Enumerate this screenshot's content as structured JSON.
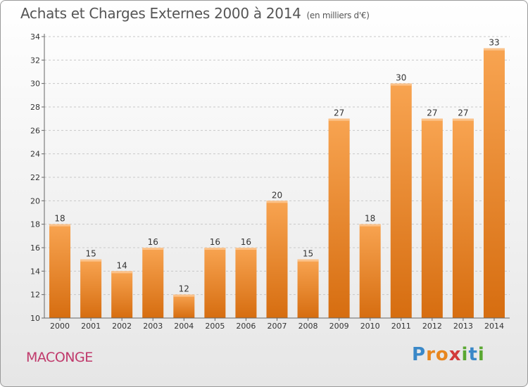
{
  "title": "Achats et Charges Externes 2000 à 2014",
  "unit": "(en milliers d'€)",
  "city": "MACONGE",
  "logo": {
    "text": "Proxiti",
    "letters": [
      {
        "ch": "P",
        "color": "#3a88c8"
      },
      {
        "ch": "r",
        "color": "#e8861e"
      },
      {
        "ch": "o",
        "color": "#e8861e"
      },
      {
        "ch": "x",
        "color": "#d23b3b"
      },
      {
        "ch": "i",
        "color": "#5aa832"
      },
      {
        "ch": "t",
        "color": "#3a88c8"
      },
      {
        "ch": "i",
        "color": "#5aa832"
      }
    ]
  },
  "colors": {
    "bar_top": "#f8a451",
    "bar_bottom": "#d66d10",
    "grid": "#c8c8c8",
    "axis": "#666666"
  },
  "chart_data": {
    "type": "bar",
    "categories": [
      "2000",
      "2001",
      "2002",
      "2003",
      "2004",
      "2005",
      "2006",
      "2007",
      "2008",
      "2009",
      "2010",
      "2011",
      "2012",
      "2013",
      "2014"
    ],
    "values": [
      18,
      15,
      14,
      16,
      12,
      16,
      16,
      20,
      15,
      27,
      18,
      30,
      27,
      27,
      33
    ],
    "ylim": [
      10,
      34
    ],
    "yticks": [
      10,
      12,
      14,
      16,
      18,
      20,
      22,
      24,
      26,
      28,
      30,
      32,
      34
    ],
    "grid": true
  }
}
